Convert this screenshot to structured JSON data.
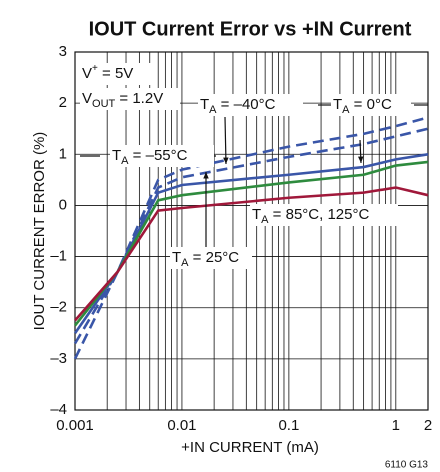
{
  "chart_data": {
    "type": "line",
    "title": "IOUT Current Error vs +IN Current",
    "xlabel": "+IN CURRENT (mA)",
    "ylabel": "IOUT CURRENT ERROR (%)",
    "footnote": "6110 G13",
    "xlog": true,
    "grid": true,
    "xlim": [
      0.001,
      2
    ],
    "ylim": [
      -4,
      3
    ],
    "xticks": [
      0.001,
      0.01,
      0.1,
      1,
      2
    ],
    "xminor": [
      0.002,
      0.003,
      0.004,
      0.005,
      0.006,
      0.007,
      0.008,
      0.009,
      0.02,
      0.03,
      0.04,
      0.05,
      0.06,
      0.07,
      0.08,
      0.09,
      0.2,
      0.3,
      0.4,
      0.5,
      0.6,
      0.7,
      0.8,
      0.9
    ],
    "yticks": [
      3,
      2,
      1,
      0,
      {
        "value": -1,
        "label": "–1"
      },
      {
        "value": -2,
        "label": "–2"
      },
      {
        "value": -3,
        "label": "–3"
      },
      {
        "value": -4,
        "label": "–4"
      }
    ],
    "x": [
      0.001,
      0.0025,
      0.006,
      0.01,
      0.1,
      0.5,
      1,
      2
    ],
    "series": [
      {
        "color": "#3a56a8",
        "dashed": true,
        "values": [
          -3,
          -1.3,
          0.5,
          0.7,
          1.15,
          1.4,
          1.55,
          1.72
        ]
      },
      {
        "color": "#3a56a8",
        "dashed": true,
        "values": [
          -2.7,
          -1.3,
          0.35,
          0.55,
          0.95,
          1.2,
          1.35,
          1.5
        ]
      },
      {
        "color": "#3a56a8",
        "dashed": false,
        "values": [
          -2.5,
          -1.3,
          0.25,
          0.4,
          0.6,
          0.75,
          0.9,
          1.0
        ]
      },
      {
        "color": "#2e8b3e",
        "dashed": false,
        "values": [
          -2.35,
          -1.3,
          0.1,
          0.2,
          0.45,
          0.6,
          0.78,
          0.85
        ]
      },
      {
        "color": "#a0183a",
        "dashed": false,
        "values": [
          -2.25,
          -1.3,
          -0.1,
          -0.05,
          0.15,
          0.25,
          0.35,
          0.2
        ]
      }
    ],
    "annotations": [
      {
        "base": "V",
        "sup": "+",
        "text": " = 5V"
      },
      {
        "base": "V",
        "sub": "OUT",
        "text": " = 1.2V"
      },
      {
        "base": "T",
        "sub": "A",
        "text": " = –40°C"
      },
      {
        "base": "T",
        "sub": "A",
        "text": " = 0°C"
      },
      {
        "base": "T",
        "sub": "A",
        "text": " = –55°C"
      },
      {
        "base": "T",
        "sub": "A",
        "text": " = 85°C, 125°C"
      },
      {
        "base": "T",
        "sub": "A",
        "text": " = 25°C"
      }
    ]
  }
}
